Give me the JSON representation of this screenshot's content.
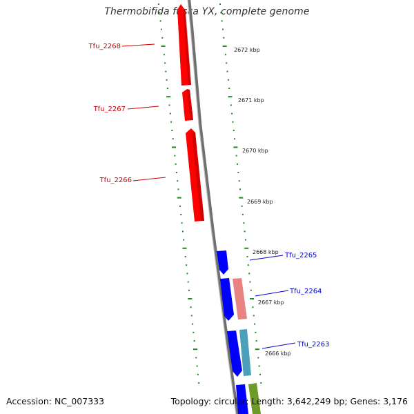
{
  "title": "Thermobifida fusca YX, complete genome",
  "accession": "Accession: NC_007333",
  "summary": "Topology: circular; Length: 3,642,249 bp; Genes: 3,176",
  "colors": {
    "reverse_gene": "#ff0000",
    "forward_gene": "#0000ff",
    "faded_gene": "#e98383",
    "teal_gene": "#4aa0b8",
    "olive_gene": "#6e9a2a",
    "backbone": "#888888",
    "tick": "#1a8a1a",
    "reverse_label": "#cc0000",
    "forward_label": "#0000cc"
  },
  "genes": [
    {
      "name": "Tfu_2268",
      "strand": "reverse"
    },
    {
      "name": "Tfu_2267",
      "strand": "reverse"
    },
    {
      "name": "Tfu_2266",
      "strand": "reverse"
    },
    {
      "name": "Tfu_2265",
      "strand": "forward"
    },
    {
      "name": "Tfu_2264",
      "strand": "forward"
    },
    {
      "name": "Tfu_2263",
      "strand": "forward"
    }
  ],
  "kbp_ticks": [
    "2672 kbp",
    "2671 kbp",
    "2670 kbp",
    "2669 kbp",
    "2668 kbp",
    "2667 kbp",
    "2666 kbp"
  ]
}
